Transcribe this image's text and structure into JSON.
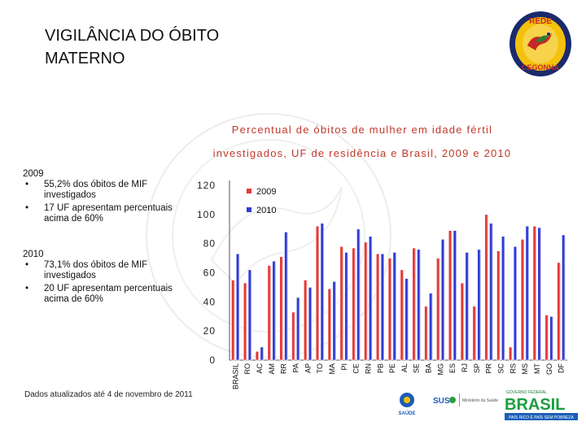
{
  "slide": {
    "title_line1": "VIGILÂNCIA DO ÓBITO",
    "title_line2": "MATERNO",
    "logo_text_top": "REDE",
    "logo_text_bottom": "CEGONHA",
    "chart_title_line1": "Percentual de óbitos de mulher em idade fértil",
    "chart_title_line2": "investigados, UF de residência e Brasil, 2009 e 2010",
    "footnote": "Dados atualizados até 4 de novembro de 2011",
    "summary_2009": {
      "year": "2009",
      "bullets": [
        "55,2% dos óbitos de MIF investigados",
        "17 UF apresentam percentuais acima de 60%"
      ]
    },
    "summary_2010": {
      "year": "2010",
      "bullets": [
        "73,1% dos óbitos de MIF investigados",
        "20 UF apresentam percentuais acima de 60%"
      ]
    },
    "bullet_glyph": "•",
    "footer": {
      "saude_label": "SAÚDE",
      "sus_label": "SUS",
      "ministerio_label": "Ministério da Saúde",
      "brasil_label": "BRASIL",
      "governo_label": "GOVERNO FEDERAL",
      "slogan": "PAÍS RICO É PAÍS SEM POBREZA"
    }
  },
  "colors": {
    "series_2009": "#e53935",
    "series_2010": "#2f3bd6",
    "title_red": "#c0392b"
  },
  "chart_data": {
    "type": "bar",
    "title": "Percentual de óbitos de mulher em idade fértil investigados, UF de residência e Brasil, 2009 e 2010",
    "categories": [
      "BRASIL",
      "RO",
      "AC",
      "AM",
      "RR",
      "PA",
      "AP",
      "TO",
      "MA",
      "PI",
      "CE",
      "RN",
      "PB",
      "PE",
      "AL",
      "SE",
      "BA",
      "MG",
      "ES",
      "RJ",
      "SP",
      "PR",
      "SC",
      "RS",
      "MS",
      "MT",
      "GO",
      "DF"
    ],
    "series": [
      {
        "name": "2009",
        "values": [
          55,
          53,
          6,
          65,
          71,
          33,
          55,
          92,
          49,
          78,
          77,
          81,
          73,
          70,
          62,
          77,
          37,
          70,
          89,
          53,
          37,
          100,
          75,
          9,
          83,
          92,
          31,
          67
        ]
      },
      {
        "name": "2010",
        "values": [
          73,
          62,
          9,
          68,
          88,
          43,
          50,
          94,
          54,
          74,
          90,
          85,
          73,
          74,
          56,
          76,
          46,
          83,
          89,
          74,
          76,
          94,
          85,
          78,
          92,
          91,
          30,
          86
        ]
      }
    ],
    "ylim": [
      0,
      120
    ],
    "yticks": [
      0,
      20,
      40,
      60,
      80,
      100,
      120
    ],
    "grid": false,
    "legend": "top-left"
  }
}
